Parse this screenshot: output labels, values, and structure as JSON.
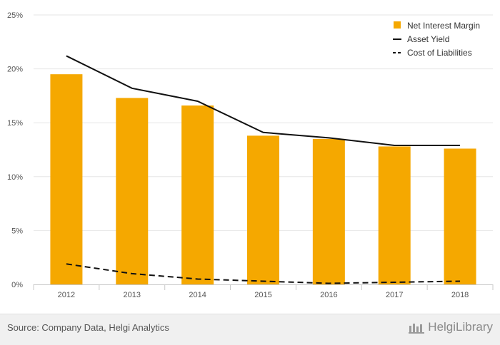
{
  "chart_data": {
    "type": "bar",
    "categories": [
      "2012",
      "2013",
      "2014",
      "2015",
      "2016",
      "2017",
      "2018"
    ],
    "series": [
      {
        "name": "Net Interest Margin",
        "type": "bar",
        "color": "#f5a800",
        "values": [
          19.5,
          17.3,
          16.6,
          13.8,
          13.5,
          12.8,
          12.6
        ]
      },
      {
        "name": "Asset Yield",
        "type": "line",
        "style": "solid",
        "color": "#111111",
        "values": [
          21.2,
          18.2,
          17.0,
          14.1,
          13.6,
          12.9,
          12.9
        ]
      },
      {
        "name": "Cost of Liabilities",
        "type": "line",
        "style": "dashed",
        "color": "#111111",
        "values": [
          1.9,
          1.0,
          0.5,
          0.3,
          0.1,
          0.2,
          0.3
        ]
      }
    ],
    "yticks": [
      "0%",
      "5%",
      "10%",
      "15%",
      "20%",
      "25%"
    ],
    "ylim": [
      0,
      25
    ],
    "grid": true,
    "legend_position": "top-right"
  },
  "footer": {
    "source": "Source: Company Data, Helgi Analytics",
    "brand": "HelgiLibrary"
  }
}
